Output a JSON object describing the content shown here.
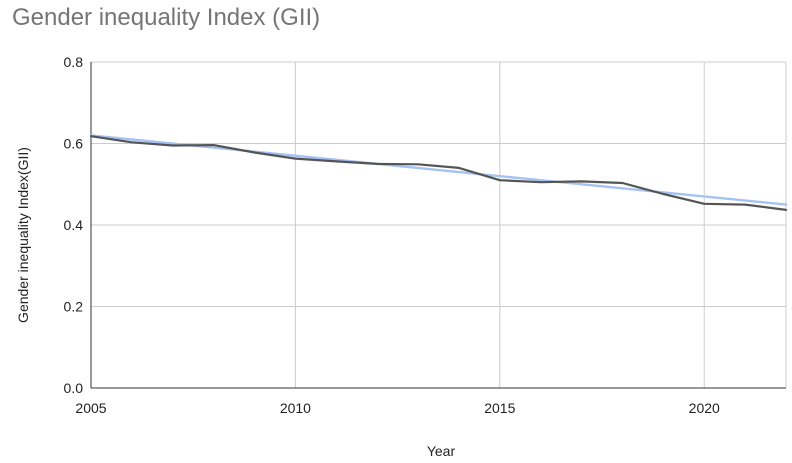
{
  "chart_data": {
    "type": "line",
    "title": "Gender inequality Index (GII)",
    "xlabel": "Year",
    "ylabel": "Gender inequality Index(GII)",
    "xlim": [
      2005,
      2022
    ],
    "ylim": [
      0,
      0.8
    ],
    "x_ticks": [
      "2005",
      "2010",
      "2015",
      "2020"
    ],
    "x_tick_values": [
      2005,
      2010,
      2015,
      2020
    ],
    "y_ticks": [
      "0.0",
      "0.2",
      "0.4",
      "0.6",
      "0.8"
    ],
    "y_tick_values": [
      0,
      0.2,
      0.4,
      0.6,
      0.8
    ],
    "grid": true,
    "legend": "none",
    "x": [
      2005,
      2006,
      2007,
      2008,
      2009,
      2010,
      2011,
      2012,
      2013,
      2014,
      2015,
      2016,
      2017,
      2018,
      2019,
      2020,
      2021,
      2022
    ],
    "series": [
      {
        "values": [
          0.618,
          0.603,
          0.595,
          0.596,
          0.578,
          0.563,
          0.556,
          0.55,
          0.549,
          0.54,
          0.51,
          0.505,
          0.507,
          0.503,
          0.476,
          0.452,
          0.45,
          0.437
        ],
        "color": "#555555"
      },
      {
        "values": [
          0.62,
          0.45
        ],
        "x": [
          2005,
          2022
        ],
        "color": "#a4c2f4"
      }
    ]
  }
}
